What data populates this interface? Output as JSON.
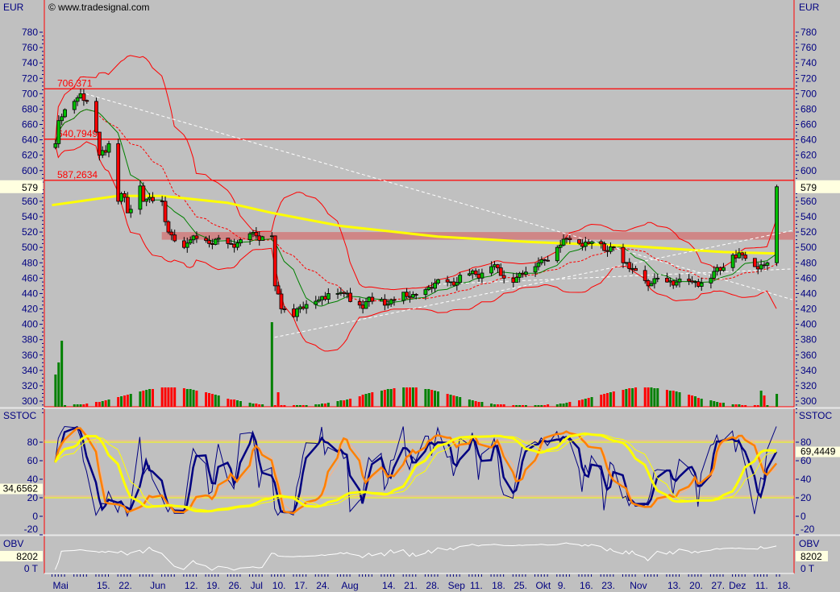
{
  "header": {
    "currency_left": "EUR",
    "currency_right": "EUR",
    "copyright": "© www.tradesignal.com"
  },
  "chart_data": {
    "type": "candlestick",
    "price_axis": {
      "ylim": [
        300,
        790
      ],
      "ticks": [
        780,
        760,
        740,
        720,
        700,
        680,
        660,
        640,
        620,
        600,
        580,
        560,
        540,
        520,
        500,
        480,
        460,
        440,
        420,
        400,
        380,
        360,
        340,
        320,
        300
      ]
    },
    "last_price_label": "579",
    "horizontal_levels": [
      {
        "value": 706.371,
        "label": "706,371"
      },
      {
        "value": 640.7949,
        "label": "640,7949"
      },
      {
        "value": 587.2634,
        "label": "587,2634"
      }
    ],
    "resistance_zone": {
      "from": 510,
      "to": 520,
      "start": "05.06",
      "color": "#d08080"
    },
    "close_keypoints": [
      [
        "02.05",
        635
      ],
      [
        "03.05",
        665
      ],
      [
        "08.05",
        690
      ],
      [
        "10.05",
        700
      ],
      [
        "12.05",
        690
      ],
      [
        "15.05",
        650
      ],
      [
        "16.05",
        620
      ],
      [
        "19.05",
        635
      ],
      [
        "22.05",
        560
      ],
      [
        "23.05",
        570
      ],
      [
        "25.05",
        545
      ],
      [
        "29.05",
        580
      ],
      [
        "30.05",
        560
      ],
      [
        "05.06",
        560
      ],
      [
        "07.06",
        520
      ],
      [
        "12.06",
        500
      ],
      [
        "15.06",
        515
      ],
      [
        "20.06",
        505
      ],
      [
        "26.06",
        505
      ],
      [
        "30.06",
        510
      ],
      [
        "05.07",
        515
      ],
      [
        "10.07",
        515
      ],
      [
        "11.07",
        450
      ],
      [
        "13.07",
        420
      ],
      [
        "17.07",
        410
      ],
      [
        "18.07",
        420
      ],
      [
        "24.07",
        430
      ],
      [
        "28.07",
        440
      ],
      [
        "02.08",
        440
      ],
      [
        "07.08",
        425
      ],
      [
        "11.08",
        430
      ],
      [
        "17.08",
        432
      ],
      [
        "23.08",
        435
      ],
      [
        "28.08",
        445
      ],
      [
        "04.09",
        455
      ],
      [
        "13.09",
        465
      ],
      [
        "18.09",
        475
      ],
      [
        "22.09",
        460
      ],
      [
        "28.09",
        465
      ],
      [
        "03.10",
        480
      ],
      [
        "09.10",
        500
      ],
      [
        "13.10",
        510
      ],
      [
        "19.10",
        505
      ],
      [
        "27.10",
        500
      ],
      [
        "30.10",
        480
      ],
      [
        "03.11",
        470
      ],
      [
        "07.11",
        450
      ],
      [
        "10.11",
        460
      ],
      [
        "16.11",
        455
      ],
      [
        "21.11",
        455
      ],
      [
        "27.11",
        460
      ],
      [
        "30.11",
        470
      ],
      [
        "04.12",
        490
      ],
      [
        "07.12",
        490
      ],
      [
        "11.12",
        475
      ],
      [
        "15.12",
        480
      ],
      [
        "15.12",
        480
      ],
      [
        "18.12",
        579
      ]
    ],
    "long_ma_keypoints": [
      [
        "01.05",
        555
      ],
      [
        "22.05",
        567
      ],
      [
        "05.06",
        567
      ],
      [
        "26.06",
        558
      ],
      [
        "10.07",
        545
      ],
      [
        "01.08",
        528
      ],
      [
        "01.09",
        514
      ],
      [
        "01.10",
        507
      ],
      [
        "01.11",
        502
      ],
      [
        "01.12",
        494
      ],
      [
        "18.12",
        492
      ]
    ],
    "trendlines": [
      {
        "from": [
          "10.05",
          702
        ],
        "to": [
          "18.12",
          432
        ]
      },
      {
        "from": [
          "11.07",
          383
        ],
        "to": [
          "18.12",
          522
        ]
      },
      {
        "from": [
          "01.09",
          452
        ],
        "to": [
          "18.12",
          472
        ]
      }
    ],
    "volume_spikes": [
      [
        "02.05",
        40
      ],
      [
        "03.05",
        55
      ],
      [
        "04.05",
        82
      ],
      [
        "10.07",
        105
      ],
      [
        "12.07",
        18
      ],
      [
        "18.12",
        16
      ],
      [
        "13.12",
        20
      ],
      [
        "14.12",
        14
      ]
    ],
    "stoch": {
      "label": "SSTOC",
      "ticks": [
        80,
        60,
        40,
        20,
        0,
        -20
      ],
      "levels": [
        20,
        80
      ],
      "value_left": "34,6562",
      "value_right": "69,4449"
    },
    "obv": {
      "label": "OBV",
      "value": "8202",
      "zero_label": "0 T"
    },
    "x_labels": [
      [
        "01.05",
        "Mai"
      ],
      [
        "15.05",
        "15."
      ],
      [
        "22.05",
        "22."
      ],
      [
        "01.06",
        "Jun"
      ],
      [
        "12.06",
        "12."
      ],
      [
        "19.06",
        "19."
      ],
      [
        "26.06",
        "26."
      ],
      [
        "03.07",
        "Jul"
      ],
      [
        "10.07",
        "10."
      ],
      [
        "17.07",
        "17."
      ],
      [
        "24.07",
        "24."
      ],
      [
        "01.08",
        "Aug"
      ],
      [
        "14.08",
        "14."
      ],
      [
        "21.08",
        "21."
      ],
      [
        "28.08",
        "28."
      ],
      [
        "04.09",
        "Sep"
      ],
      [
        "11.09",
        "11."
      ],
      [
        "18.09",
        "18."
      ],
      [
        "25.09",
        "25."
      ],
      [
        "02.10",
        "Okt"
      ],
      [
        "09.10",
        "9."
      ],
      [
        "16.10",
        "16."
      ],
      [
        "23.10",
        "23."
      ],
      [
        "01.11",
        "Nov"
      ],
      [
        "13.11",
        "13."
      ],
      [
        "20.11",
        "20."
      ],
      [
        "27.11",
        "27."
      ],
      [
        "01.12",
        "Dez"
      ],
      [
        "11.12",
        "11."
      ],
      [
        "18.12",
        "18."
      ]
    ],
    "colors": {
      "background": "#c0c0c0",
      "axis_text": "#000080",
      "up": "#00c000",
      "down": "#ff0000",
      "bands": "#ff0000",
      "fast_ma": "#008000",
      "long_ma": "#ffff00",
      "stoch_fast": "#000080",
      "stoch_slow": "#ff8000",
      "stoch_long": "#ffff00",
      "obv": "#ffffff"
    }
  }
}
